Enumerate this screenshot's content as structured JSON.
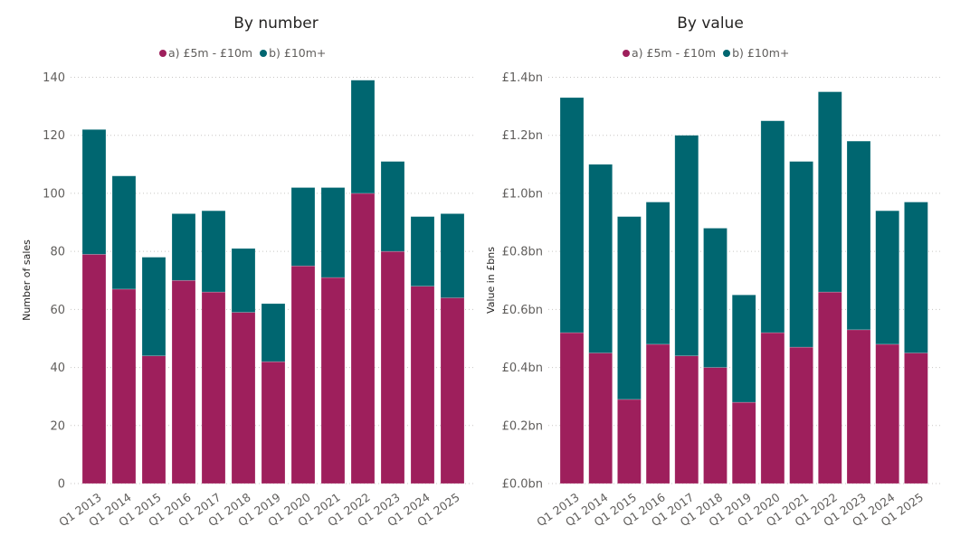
{
  "colors": {
    "a": "#9E1F5C",
    "b": "#006670"
  },
  "legend": {
    "a_label": "a) £5m - £10m",
    "b_label": "b) £10m+"
  },
  "chart_data": [
    {
      "type": "bar",
      "stacked": true,
      "title": "By number",
      "xlabel": "",
      "ylabel": "Number of sales",
      "ylim": [
        0,
        140
      ],
      "yticks": [
        0,
        20,
        40,
        60,
        80,
        100,
        120,
        140
      ],
      "ytick_labels": [
        "0",
        "20",
        "40",
        "60",
        "80",
        "100",
        "120",
        "140"
      ],
      "grid": true,
      "legend_position": "top-center",
      "categories": [
        "Q1 2013",
        "Q1 2014",
        "Q1 2015",
        "Q1 2016",
        "Q1 2017",
        "Q1 2018",
        "Q1 2019",
        "Q1 2020",
        "Q1 2021",
        "Q1 2022",
        "Q1 2023",
        "Q1 2024",
        "Q1 2025"
      ],
      "series": [
        {
          "name": "a) £5m - £10m",
          "color": "#9E1F5C",
          "values": [
            79,
            67,
            44,
            70,
            66,
            59,
            42,
            75,
            71,
            100,
            80,
            68,
            64
          ]
        },
        {
          "name": "b) £10m+",
          "color": "#006670",
          "values": [
            43,
            39,
            34,
            23,
            28,
            22,
            20,
            27,
            31,
            39,
            31,
            24,
            29
          ]
        }
      ],
      "totals": [
        122,
        106,
        78,
        93,
        94,
        81,
        62,
        102,
        102,
        139,
        111,
        92,
        93
      ]
    },
    {
      "type": "bar",
      "stacked": true,
      "title": "By value",
      "xlabel": "",
      "ylabel": "Value in £bns",
      "ylim": [
        0,
        1.4
      ],
      "yticks": [
        0,
        0.2,
        0.4,
        0.6,
        0.8,
        1.0,
        1.2,
        1.4
      ],
      "ytick_labels": [
        "£0.0bn",
        "£0.2bn",
        "£0.4bn",
        "£0.6bn",
        "£0.8bn",
        "£1.0bn",
        "£1.2bn",
        "£1.4bn"
      ],
      "grid": true,
      "legend_position": "top-center",
      "categories": [
        "Q1 2013",
        "Q1 2014",
        "Q1 2015",
        "Q1 2016",
        "Q1 2017",
        "Q1 2018",
        "Q1 2019",
        "Q1 2020",
        "Q1 2021",
        "Q1 2022",
        "Q1 2023",
        "Q1 2024",
        "Q1 2025"
      ],
      "series": [
        {
          "name": "a) £5m - £10m",
          "color": "#9E1F5C",
          "values": [
            0.52,
            0.45,
            0.29,
            0.48,
            0.44,
            0.4,
            0.28,
            0.52,
            0.47,
            0.66,
            0.53,
            0.48,
            0.45
          ]
        },
        {
          "name": "b) £10m+",
          "color": "#006670",
          "values": [
            0.81,
            0.65,
            0.63,
            0.49,
            0.76,
            0.48,
            0.37,
            0.73,
            0.64,
            0.69,
            0.65,
            0.46,
            0.52
          ]
        }
      ],
      "totals": [
        1.33,
        1.1,
        0.92,
        0.97,
        1.2,
        0.88,
        0.65,
        1.25,
        1.11,
        1.35,
        1.18,
        0.94,
        0.97
      ]
    }
  ]
}
